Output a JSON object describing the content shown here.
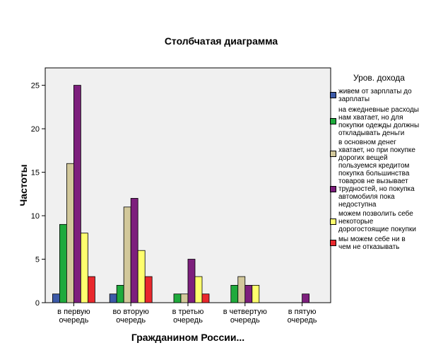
{
  "chart_data": {
    "type": "bar",
    "title": "Столбчатая диаграмма",
    "xlabel": "Гражданином России...",
    "ylabel": "Частоты",
    "ylim": [
      0,
      27
    ],
    "yticks": [
      0,
      5,
      10,
      15,
      20,
      25
    ],
    "grid": false,
    "legend_position": "right",
    "legend_title": "Уров. дохода",
    "categories": [
      [
        "в первую",
        "очередь"
      ],
      [
        "во вторую",
        "очередь"
      ],
      [
        "в третью",
        "очередь"
      ],
      [
        "в четвертую",
        "очередь"
      ],
      [
        "в пятую",
        "очередь"
      ]
    ],
    "series": [
      {
        "name": [
          "живем от зарплаты до",
          "зарплаты"
        ],
        "color": "#3c5aa8",
        "values": [
          1,
          1,
          0,
          0,
          0
        ]
      },
      {
        "name": [
          "на ежедневные расходы",
          "нам хватает, но для",
          "покупки одежды должны",
          "откладывать деньги"
        ],
        "color": "#1faa3c",
        "values": [
          9,
          2,
          1,
          2,
          0
        ]
      },
      {
        "name": [
          "в основном денег",
          "хватает, но при покупке",
          "дорогих вещей",
          "пользуемся кредитом"
        ],
        "color": "#d2c89b",
        "values": [
          16,
          11,
          1,
          3,
          0
        ]
      },
      {
        "name": [
          "покупка большинства",
          "товаров не вызывает",
          "трудностей, но покупка",
          "автомобиля пока",
          "недоступна"
        ],
        "color": "#7d1f7d",
        "values": [
          25,
          12,
          5,
          2,
          1
        ]
      },
      {
        "name": [
          "можем позволить себе",
          "некоторые",
          "дорогостоящие покупки"
        ],
        "color": "#ffff6e",
        "values": [
          8,
          6,
          3,
          2,
          0
        ]
      },
      {
        "name": [
          "мы можем себе ни  в",
          "чем не отказывать"
        ],
        "color": "#e8282d",
        "values": [
          3,
          3,
          1,
          0,
          0
        ]
      }
    ]
  }
}
